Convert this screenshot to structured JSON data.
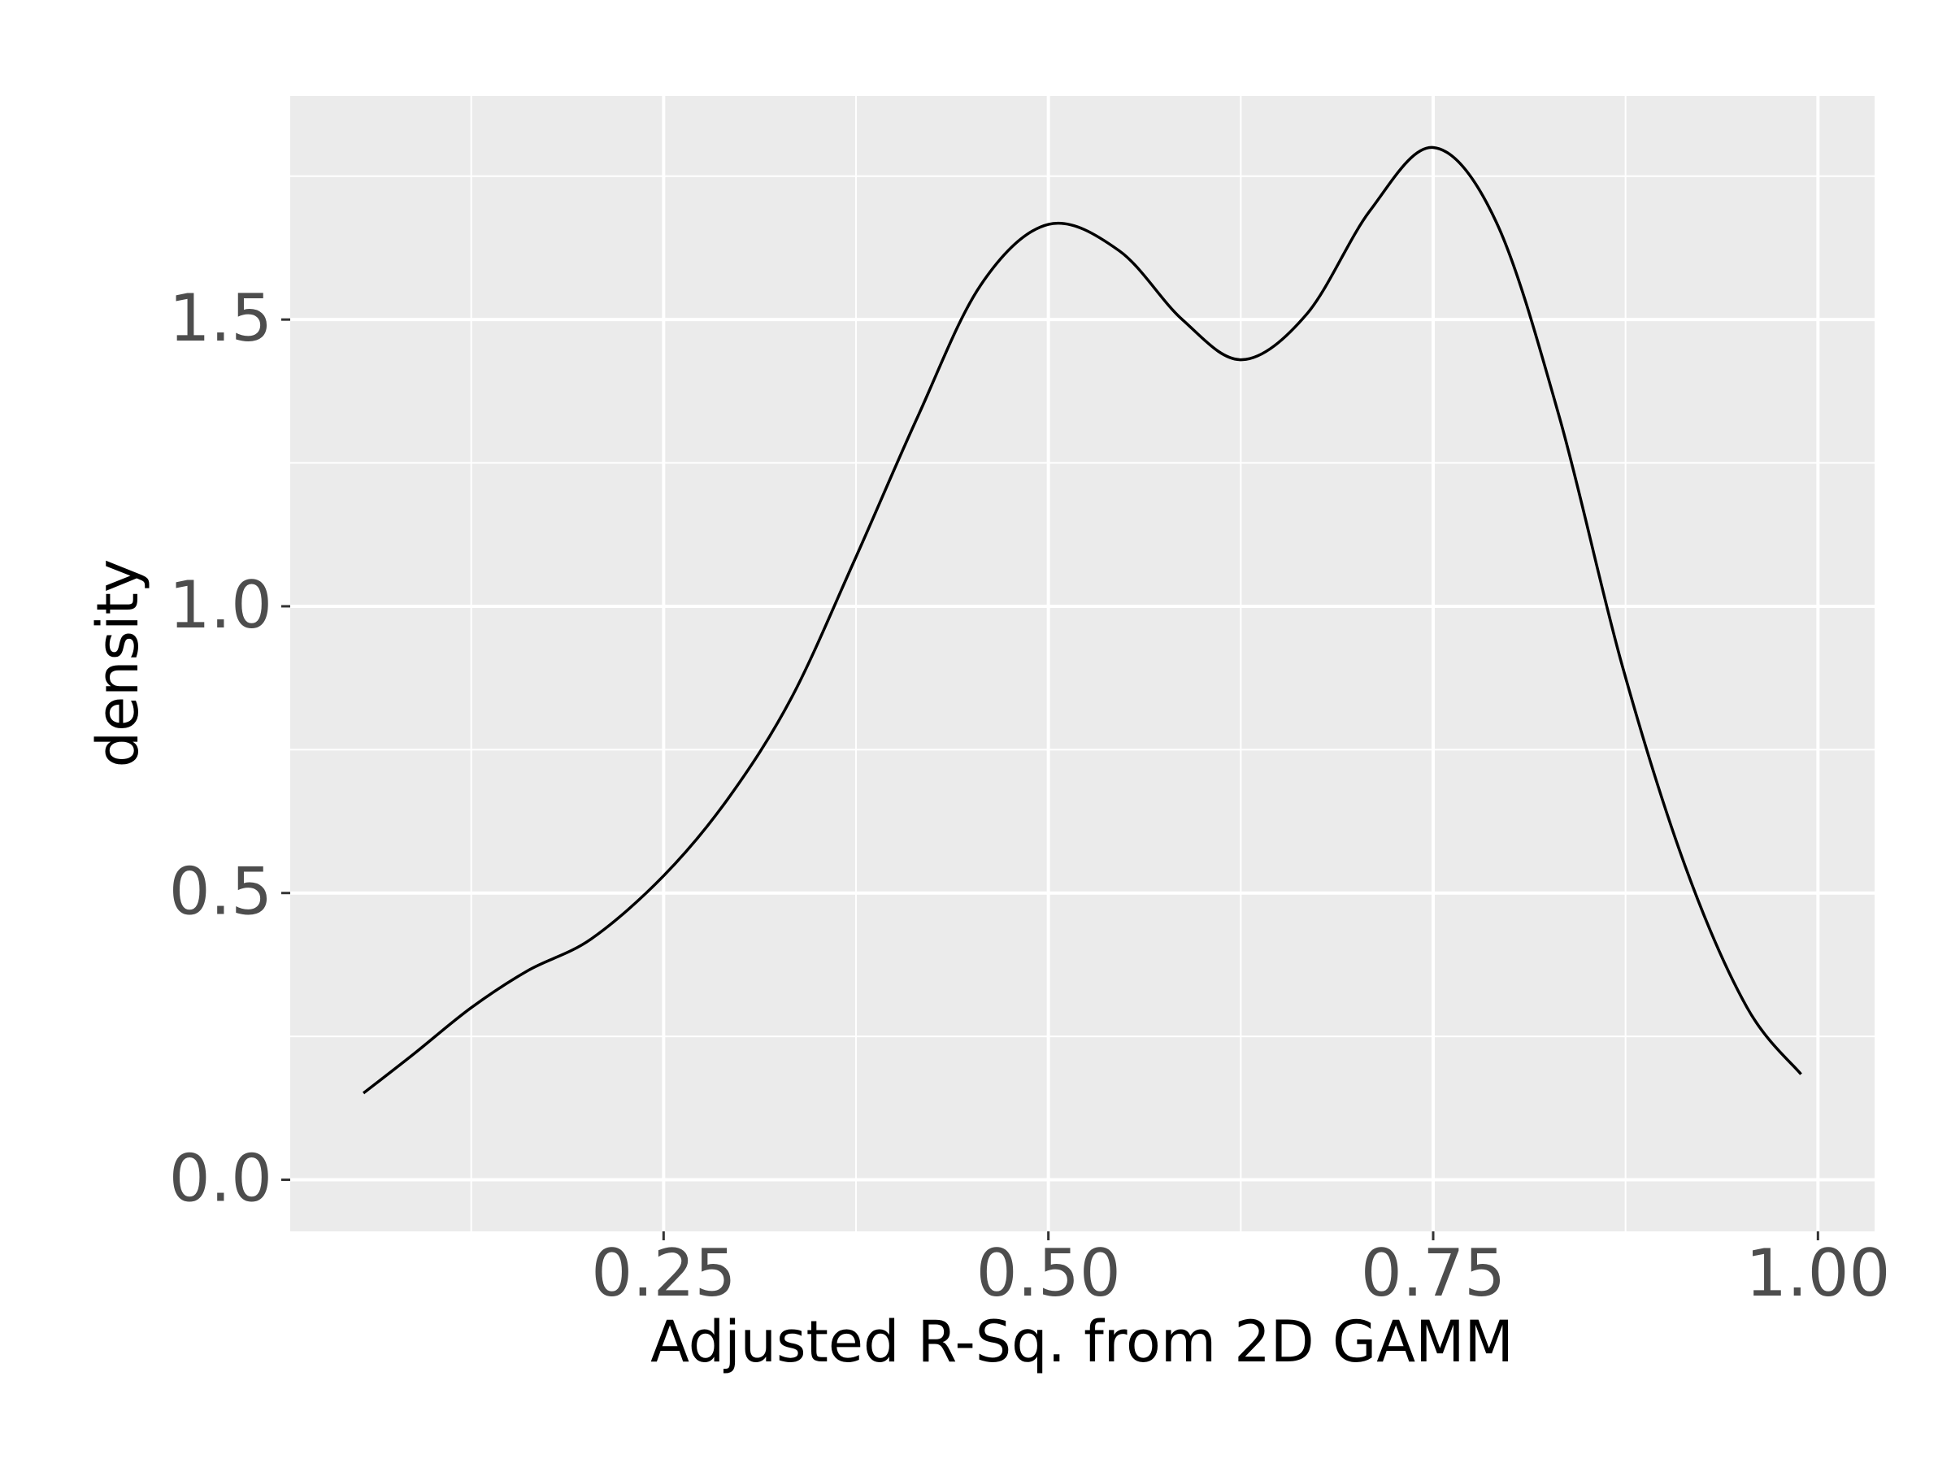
{
  "chart_data": {
    "type": "line",
    "x_label": "Adjusted R-Sq. from 2D GAMM",
    "y_label": "density",
    "x": [
      0.055,
      0.088,
      0.125,
      0.162,
      0.203,
      0.25,
      0.292,
      0.333,
      0.374,
      0.415,
      0.456,
      0.5,
      0.546,
      0.587,
      0.626,
      0.668,
      0.709,
      0.75,
      0.791,
      0.832,
      0.873,
      0.914,
      0.954,
      0.989
    ],
    "series": [
      {
        "color": "#000000",
        "values": [
          0.151,
          0.22,
          0.3,
          0.365,
          0.42,
          0.53,
          0.665,
          0.84,
          1.08,
          1.33,
          1.56,
          1.666,
          1.62,
          1.5,
          1.43,
          1.51,
          1.69,
          1.8,
          1.67,
          1.33,
          0.895,
          0.545,
          0.3,
          0.184
        ]
      }
    ],
    "xlim": [
      0.0074,
      1.0368
    ],
    "ylim": [
      -0.09,
      1.89
    ],
    "xticks": [
      0.25,
      {
        "value": 0.5,
        "label": "0.50"
      },
      {
        "value": 0.75,
        "label": "0.75"
      },
      {
        "value": 1,
        "label": "1.00"
      }
    ],
    "yticks": [
      {
        "value": 0,
        "label": "0.0"
      },
      {
        "value": 0.5,
        "label": "0.5"
      },
      {
        "value": 1,
        "label": "1.0"
      },
      {
        "value": 1.5,
        "label": "1.5"
      }
    ],
    "grid": true
  }
}
